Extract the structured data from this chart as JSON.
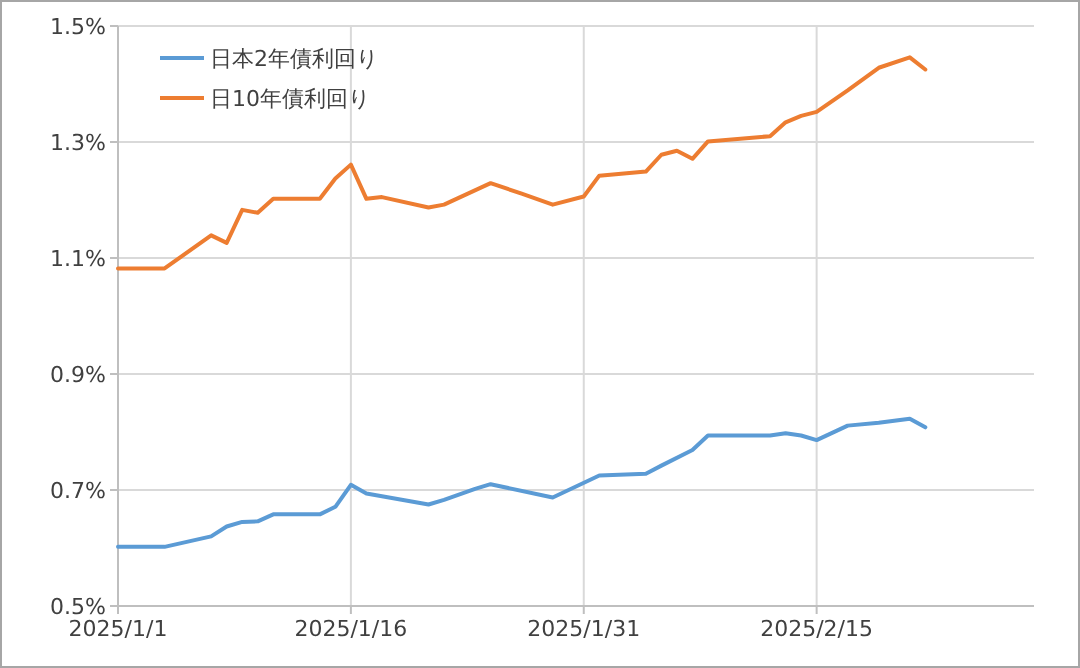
{
  "chart_data": {
    "type": "line",
    "xlim": [
      "2025-01-01",
      "2025-03-01"
    ],
    "xticks": [
      {
        "value": "2025-01-01",
        "label": "2025/1/1"
      },
      {
        "value": "2025-01-16",
        "label": "2025/1/16"
      },
      {
        "value": "2025-01-31",
        "label": "2025/1/31"
      },
      {
        "value": "2025-02-15",
        "label": "2025/2/15"
      }
    ],
    "ylim": [
      0.5,
      1.5
    ],
    "yticks": [
      {
        "value": 0.5,
        "label": "0.5%"
      },
      {
        "value": 0.7,
        "label": "0.7%"
      },
      {
        "value": 0.9,
        "label": "0.9%"
      },
      {
        "value": 1.1,
        "label": "1.1%"
      },
      {
        "value": 1.3,
        "label": "1.3%"
      },
      {
        "value": 1.5,
        "label": "1.5%"
      }
    ],
    "grid": true,
    "legend": "top left",
    "marker": "none",
    "line_style": "solid",
    "series": [
      {
        "name": "日本2年債利回り",
        "color": "#5b9bd5",
        "x": [
          "2025-01-01",
          "2025-01-04",
          "2025-01-07",
          "2025-01-08",
          "2025-01-09",
          "2025-01-10",
          "2025-01-11",
          "2025-01-14",
          "2025-01-15",
          "2025-01-16",
          "2025-01-17",
          "2025-01-21",
          "2025-01-22",
          "2025-01-24",
          "2025-01-25",
          "2025-01-29",
          "2025-02-01",
          "2025-02-04",
          "2025-02-05",
          "2025-02-07",
          "2025-02-08",
          "2025-02-12",
          "2025-02-13",
          "2025-02-14",
          "2025-02-15",
          "2025-02-17",
          "2025-02-19",
          "2025-02-21",
          "2025-02-22"
        ],
        "values": [
          0.602,
          0.602,
          0.62,
          0.637,
          0.645,
          0.646,
          0.658,
          0.658,
          0.671,
          0.709,
          0.694,
          0.675,
          0.683,
          0.702,
          0.71,
          0.687,
          0.725,
          0.728,
          0.742,
          0.769,
          0.794,
          0.794,
          0.798,
          0.794,
          0.786,
          0.811,
          0.816,
          0.823,
          0.808
        ]
      },
      {
        "name": "日10年債利回り",
        "color": "#ed7d31",
        "x": [
          "2025-01-01",
          "2025-01-04",
          "2025-01-07",
          "2025-01-08",
          "2025-01-09",
          "2025-01-10",
          "2025-01-11",
          "2025-01-14",
          "2025-01-15",
          "2025-01-16",
          "2025-01-17",
          "2025-01-18",
          "2025-01-21",
          "2025-01-22",
          "2025-01-25",
          "2025-01-27",
          "2025-01-29",
          "2025-01-31",
          "2025-02-01",
          "2025-02-04",
          "2025-02-05",
          "2025-02-06",
          "2025-02-07",
          "2025-02-08",
          "2025-02-12",
          "2025-02-13",
          "2025-02-14",
          "2025-02-15",
          "2025-02-17",
          "2025-02-19",
          "2025-02-21",
          "2025-02-22"
        ],
        "values": [
          1.082,
          1.082,
          1.139,
          1.126,
          1.183,
          1.178,
          1.202,
          1.202,
          1.237,
          1.261,
          1.202,
          1.205,
          1.187,
          1.192,
          1.229,
          1.211,
          1.192,
          1.206,
          1.242,
          1.249,
          1.278,
          1.285,
          1.271,
          1.301,
          1.31,
          1.334,
          1.345,
          1.352,
          1.389,
          1.428,
          1.446,
          1.425
        ]
      }
    ]
  }
}
